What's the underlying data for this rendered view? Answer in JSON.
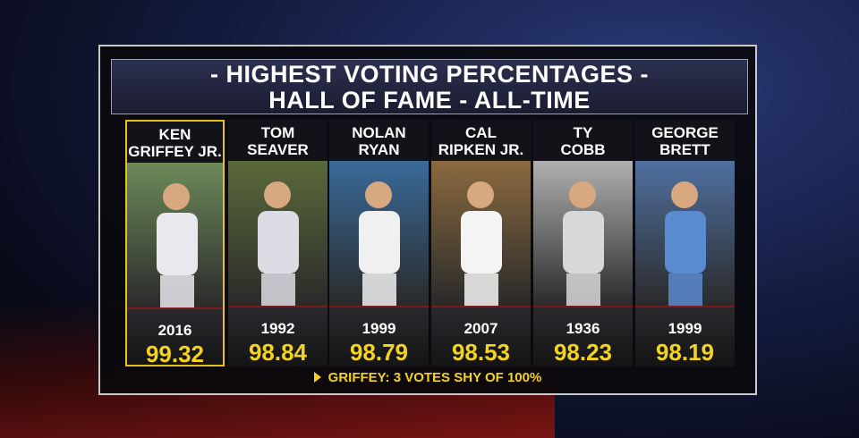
{
  "title": {
    "line1": "- HIGHEST VOTING PERCENTAGES -",
    "line2": "HALL OF FAME - ALL-TIME"
  },
  "players": [
    {
      "name_lines": [
        "KEN",
        "GRIFFEY JR."
      ],
      "year": "2016",
      "percentage": "99.32",
      "highlight": true
    },
    {
      "name_lines": [
        "TOM",
        "SEAVER"
      ],
      "year": "1992",
      "percentage": "98.84",
      "highlight": false
    },
    {
      "name_lines": [
        "NOLAN",
        "RYAN"
      ],
      "year": "1999",
      "percentage": "98.79",
      "highlight": false
    },
    {
      "name_lines": [
        "CAL",
        "RIPKEN JR."
      ],
      "year": "2007",
      "percentage": "98.53",
      "highlight": false
    },
    {
      "name_lines": [
        "TY",
        "COBB"
      ],
      "year": "1936",
      "percentage": "98.23",
      "highlight": false
    },
    {
      "name_lines": [
        "GEORGE",
        "BRETT"
      ],
      "year": "1999",
      "percentage": "98.19",
      "highlight": false
    }
  ],
  "footer": "GRIFFEY: 3 VOTES SHY OF 100%"
}
